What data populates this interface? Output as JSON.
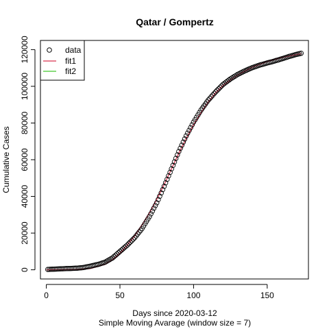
{
  "chart_data": {
    "type": "scatter",
    "title": "Qatar / Gompertz",
    "xlabel": "Days since 2020-03-12",
    "xlabel2": "Simple Moving Avarage (window size = 7)",
    "ylabel": "Cumulative Cases",
    "xlim": [
      -4,
      178
    ],
    "ylim": [
      -5000,
      125000
    ],
    "x_ticks": [
      0,
      50,
      100,
      150
    ],
    "y_ticks": [
      0,
      20000,
      40000,
      60000,
      80000,
      100000,
      120000
    ],
    "grid": false,
    "legend_position": "top-left",
    "legend": [
      {
        "label": "data",
        "marker": "circle",
        "color": "#000000"
      },
      {
        "label": "fit1",
        "marker": "line",
        "color": "#DF536B"
      },
      {
        "label": "fit2",
        "marker": "line",
        "color": "#61D04F"
      }
    ],
    "data_points": [
      [
        1,
        200
      ],
      [
        5,
        350
      ],
      [
        10,
        550
      ],
      [
        15,
        700
      ],
      [
        20,
        850
      ],
      [
        25,
        1200
      ],
      [
        30,
        2000
      ],
      [
        35,
        2900
      ],
      [
        40,
        4200
      ],
      [
        45,
        6500
      ],
      [
        50,
        10000
      ],
      [
        55,
        13500
      ],
      [
        60,
        17500
      ],
      [
        65,
        22500
      ],
      [
        70,
        29000
      ],
      [
        75,
        36500
      ],
      [
        80,
        45500
      ],
      [
        85,
        55000
      ],
      [
        90,
        64500
      ],
      [
        95,
        73000
      ],
      [
        100,
        80500
      ],
      [
        105,
        87000
      ],
      [
        110,
        92500
      ],
      [
        115,
        97000
      ],
      [
        120,
        101000
      ],
      [
        125,
        104000
      ],
      [
        130,
        106500
      ],
      [
        135,
        108500
      ],
      [
        140,
        110200
      ],
      [
        145,
        111600
      ],
      [
        150,
        112700
      ],
      [
        155,
        113800
      ],
      [
        160,
        115000
      ],
      [
        165,
        116300
      ],
      [
        170,
        117400
      ],
      [
        173,
        118000
      ]
    ],
    "series": [
      {
        "name": "fit1",
        "color": "#DF536B",
        "x": [
          0,
          10,
          20,
          30,
          40,
          45,
          50,
          55,
          60,
          65,
          70,
          75,
          80,
          85,
          90,
          95,
          100,
          105,
          110,
          115,
          120,
          125,
          130,
          140,
          150,
          160,
          173
        ],
        "y": [
          0,
          20,
          150,
          700,
          3000,
          5500,
          9000,
          13500,
          18500,
          24500,
          31000,
          38500,
          46500,
          55000,
          63500,
          71500,
          79000,
          85500,
          91500,
          96500,
          100500,
          103500,
          106200,
          110500,
          113500,
          115700,
          117800
        ]
      },
      {
        "name": "fit2",
        "color": "#61D04F",
        "x": [],
        "y": []
      }
    ]
  }
}
